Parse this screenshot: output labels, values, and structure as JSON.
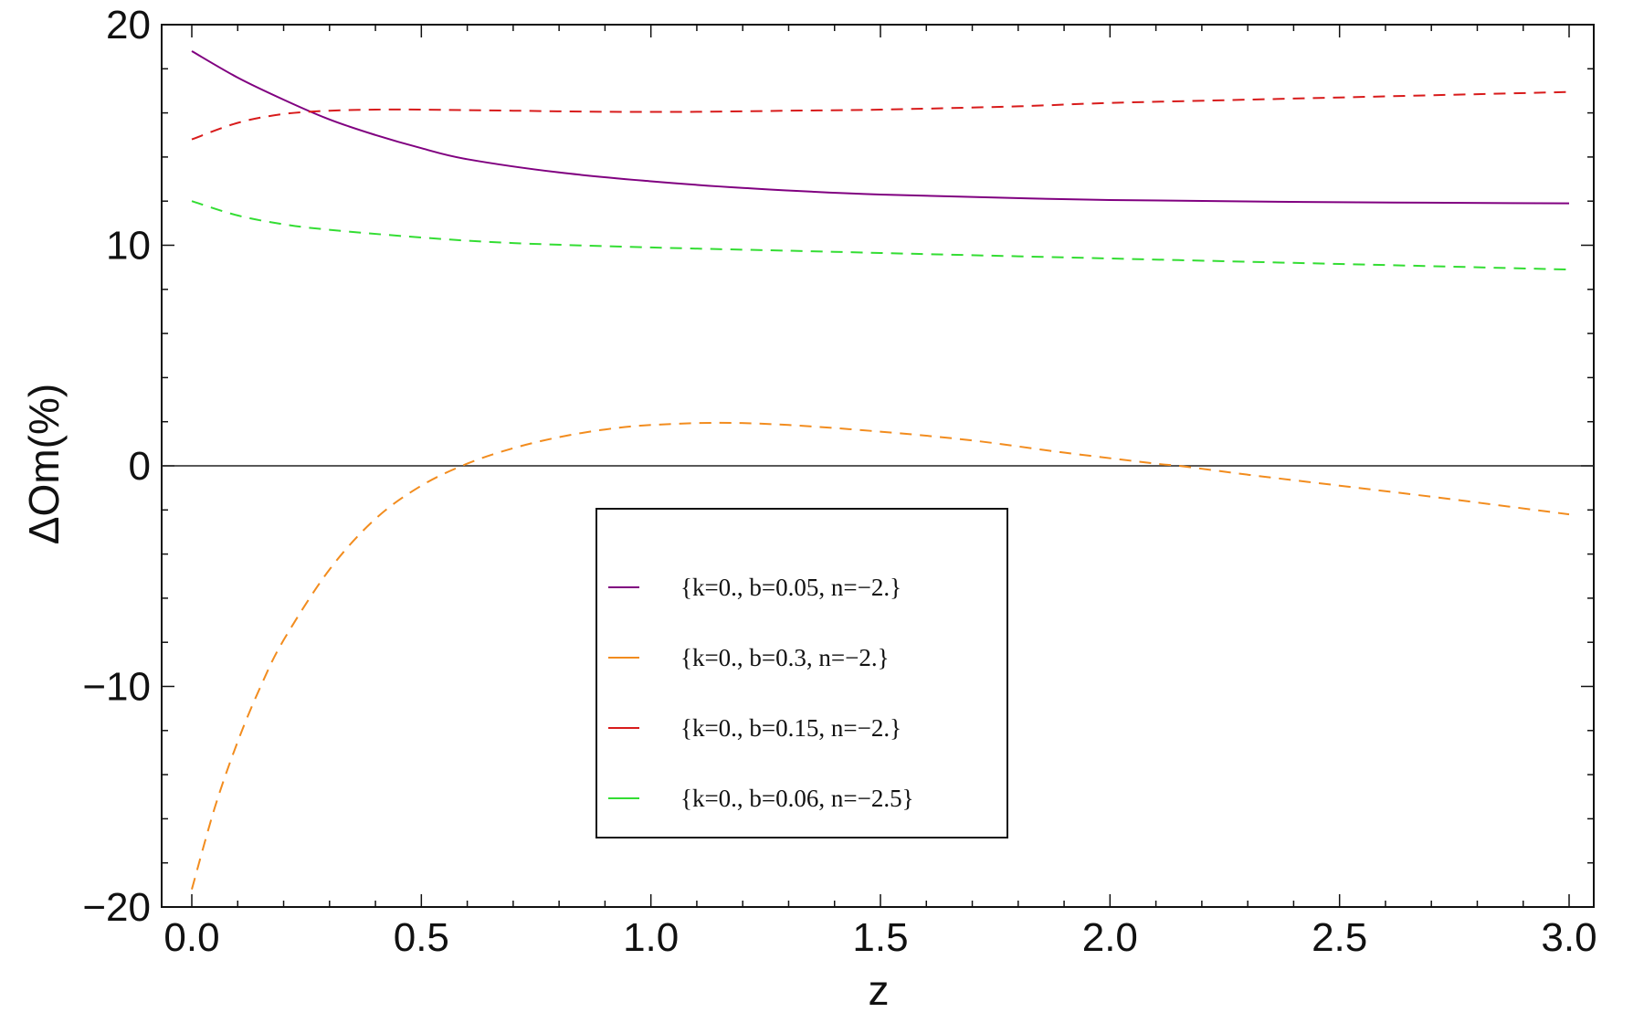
{
  "chart_data": {
    "type": "line",
    "xlabel": "z",
    "ylabel": "ΔOm(%)",
    "xlim": [
      0.0,
      3.0
    ],
    "ylim": [
      -20,
      20
    ],
    "x_ticks": [
      "0.0",
      "0.5",
      "1.0",
      "1.5",
      "2.0",
      "2.5",
      "3.0"
    ],
    "y_ticks": [
      "20",
      "10",
      "0",
      "−10",
      "−20"
    ],
    "x_tick_values": [
      0.0,
      0.5,
      1.0,
      1.5,
      2.0,
      2.5,
      3.0
    ],
    "y_tick_values": [
      20,
      10,
      0,
      -10,
      -20
    ],
    "zero_line": true,
    "grid": false,
    "legend_position": "center-bottom",
    "series": [
      {
        "name": "{k=0., b=0.05, n=−2.}",
        "color": "#800080",
        "dash": "solid",
        "x": [
          0.0,
          0.1,
          0.2,
          0.3,
          0.4,
          0.5,
          0.6,
          0.8,
          1.0,
          1.2,
          1.5,
          2.0,
          2.5,
          3.0
        ],
        "y": [
          18.8,
          17.6,
          16.6,
          15.7,
          15.0,
          14.4,
          13.9,
          13.3,
          12.9,
          12.6,
          12.3,
          12.05,
          11.95,
          11.9
        ]
      },
      {
        "name": "{k=0., b=0.3, n=−2.}",
        "color": "#f28c1e",
        "dash": "dashed",
        "x": [
          0.0,
          0.05,
          0.1,
          0.15,
          0.2,
          0.3,
          0.4,
          0.5,
          0.6,
          0.7,
          0.8,
          0.9,
          1.0,
          1.15,
          1.3,
          1.5,
          1.7,
          1.9,
          2.1,
          2.15,
          2.3,
          2.5,
          2.7,
          3.0
        ],
        "y": [
          -19.2,
          -15.5,
          -12.5,
          -10.0,
          -7.9,
          -4.7,
          -2.4,
          -0.9,
          0.1,
          0.8,
          1.3,
          1.65,
          1.85,
          1.95,
          1.85,
          1.55,
          1.15,
          0.6,
          0.1,
          0.0,
          -0.4,
          -0.9,
          -1.4,
          -2.2
        ]
      },
      {
        "name": "{k=0., b=0.15, n=−2.}",
        "color": "#d81b1b",
        "dash": "dashed",
        "x": [
          0.0,
          0.1,
          0.2,
          0.3,
          0.4,
          0.5,
          0.7,
          0.9,
          1.1,
          1.3,
          1.5,
          1.8,
          2.0,
          2.3,
          2.5,
          2.8,
          3.0
        ],
        "y": [
          14.8,
          15.55,
          15.95,
          16.1,
          16.15,
          16.15,
          16.1,
          16.05,
          16.05,
          16.1,
          16.15,
          16.3,
          16.45,
          16.6,
          16.7,
          16.85,
          16.95
        ]
      },
      {
        "name": "{k=0., b=0.06, n=−2.5}",
        "color": "#33dd33",
        "dash": "dashed",
        "x": [
          0.0,
          0.1,
          0.2,
          0.3,
          0.5,
          0.7,
          1.0,
          1.3,
          1.5,
          1.8,
          2.0,
          2.3,
          2.5,
          2.8,
          3.0
        ],
        "y": [
          12.0,
          11.35,
          10.95,
          10.7,
          10.35,
          10.1,
          9.9,
          9.75,
          9.65,
          9.5,
          9.4,
          9.25,
          9.15,
          9.0,
          8.9
        ]
      }
    ]
  }
}
